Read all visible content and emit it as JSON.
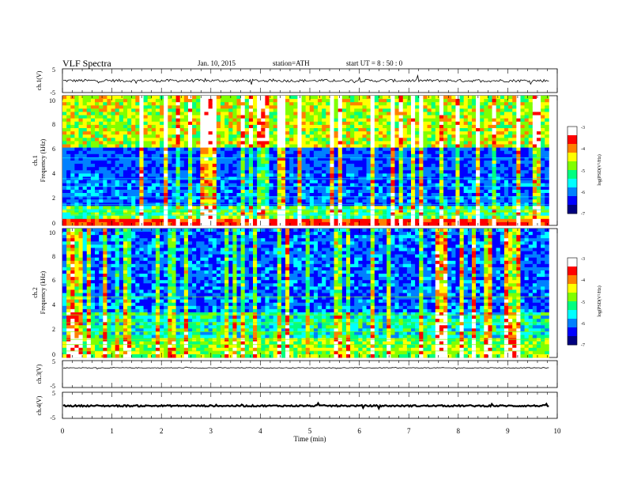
{
  "header": {
    "title": "VLF  Spectra",
    "date": "Jan. 10, 2015",
    "station": "station=ATH",
    "start": "start  UT  =   8 : 50 : 0"
  },
  "chart_data": {
    "type": "heatmap",
    "x_axis": {
      "label": "Time  (min)",
      "range": [
        0,
        10
      ],
      "ticks": [
        "0",
        "1",
        "2",
        "3",
        "4",
        "5",
        "6",
        "7",
        "8",
        "9",
        "10"
      ],
      "data_end": 9.83
    },
    "panels": [
      {
        "id": "ch1-voltage",
        "type": "line",
        "ylabel": "ch.1(V)",
        "ylim": [
          -5,
          5
        ],
        "ticks": [
          "5",
          "-5"
        ],
        "baseline": 0.0,
        "noise": 0.6
      },
      {
        "id": "ch1-spectrogram",
        "type": "heatmap",
        "channel_label": "ch.1",
        "ylabel": "Frequency  (kHz)",
        "ylim": [
          0,
          10
        ],
        "ticks": [
          "10",
          "8",
          "6",
          "4",
          "2",
          "0"
        ],
        "colorbar": {
          "label": "log(PSD(V²/Hz)",
          "range": [
            -7,
            -3
          ],
          "ticks": [
            "-3",
            "-4",
            "-5",
            "-6",
            "-7"
          ]
        }
      },
      {
        "id": "ch2-spectrogram",
        "type": "heatmap",
        "channel_label": "ch.2",
        "ylabel": "Frequency  (kHz)",
        "ylim": [
          0,
          10
        ],
        "ticks": [
          "10",
          "8",
          "6",
          "4",
          "2",
          "0"
        ],
        "colorbar": {
          "label": "log(PSD(V²/Hz)",
          "range": [
            -7,
            -3
          ],
          "ticks": [
            "-3",
            "-4",
            "-5",
            "-6",
            "-7"
          ]
        }
      },
      {
        "id": "ch3-voltage",
        "type": "line",
        "ylabel": "ch.3(V)",
        "ylim": [
          -5,
          5
        ],
        "ticks": [
          "5",
          "-5"
        ],
        "baseline": 2.3,
        "noise": 0.15
      },
      {
        "id": "ch4-voltage",
        "type": "line",
        "ylabel": "ch.4(V)",
        "ylim": [
          -5,
          5
        ],
        "ticks": [
          "5",
          "-5"
        ],
        "baseline": -0.2,
        "noise": 0.3
      }
    ],
    "colormap": [
      "#000080",
      "#0000ff",
      "#0080ff",
      "#00ffff",
      "#00ff80",
      "#80ff00",
      "#ffff00",
      "#ff8000",
      "#ff0000",
      "#ffffff"
    ]
  }
}
